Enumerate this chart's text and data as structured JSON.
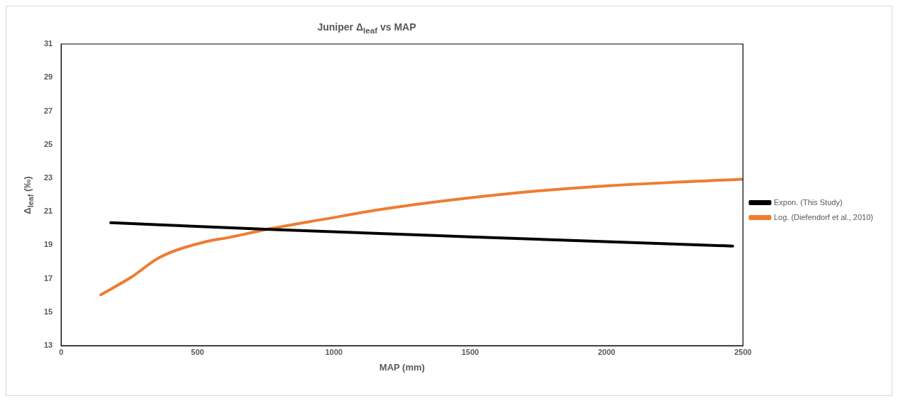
{
  "chart_data": {
    "type": "line",
    "title": "Juniper Δ$_{leaf}$ vs MAP",
    "xlabel": "MAP (mm)",
    "ylabel": "Δ$_{leaf}$ (‰)",
    "xlim": [
      0,
      2500
    ],
    "xticks": [
      0,
      500,
      1000,
      1500,
      2000,
      2500
    ],
    "ylim": [
      13,
      31
    ],
    "yticks": [
      13,
      15,
      17,
      19,
      21,
      23,
      25,
      27,
      29,
      31
    ],
    "grid": false,
    "legend": "right",
    "marker": "none",
    "line_style": "solid",
    "series": [
      {
        "name": "Expon. (This Study)",
        "color": "#000000",
        "x": [
          182,
          765,
          1500,
          2462
        ],
        "values": [
          20.34,
          19.94,
          19.5,
          18.95
        ]
      },
      {
        "name": "Log. (Diefendorf et al., 2010)",
        "color": "#ed7d31",
        "x": [
          145,
          255,
          362,
          523,
          612,
          765,
          971,
          1194,
          1650,
          2006,
          2500
        ],
        "values": [
          16.04,
          17.07,
          18.28,
          19.18,
          19.45,
          19.98,
          20.57,
          21.19,
          22.09,
          22.54,
          22.94
        ]
      }
    ]
  }
}
